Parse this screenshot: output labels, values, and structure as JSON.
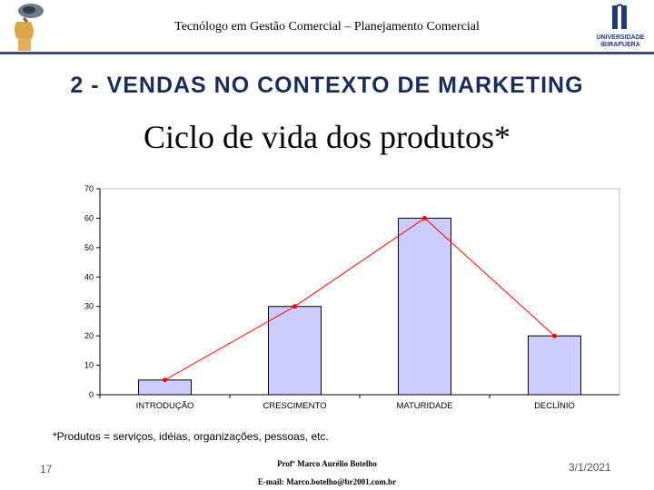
{
  "header": {
    "title": "Tecnólogo em Gestão Comercial – Planejamento Comercial",
    "right_logo_text": [
      "UNIVERSIDADE",
      "IBIRAPUERA"
    ]
  },
  "section_heading": "2 - VENDAS NO CONTEXTO DE MARKETING",
  "slide_title": "Ciclo de vida dos produtos*",
  "chart_data": {
    "type": "bar",
    "categories": [
      "INTRODUÇÃO",
      "CRESCIMENTO",
      "MATURIDADE",
      "DECLÍNIO"
    ],
    "values": [
      5,
      30,
      60,
      20
    ],
    "overlay_line": {
      "type": "line",
      "values": [
        5,
        30,
        60,
        20
      ]
    },
    "ylim": [
      0,
      70
    ],
    "yticks": [
      0,
      10,
      20,
      30,
      40,
      50,
      60,
      70
    ],
    "grid": false,
    "colors": {
      "bar_fill": "#ccccff",
      "bar_stroke": "#000000",
      "line": "#ff0000",
      "plot_bg": "#ffffff",
      "frame": "#c0c0c0"
    }
  },
  "footnote": "*Produtos = serviços, idéias, organizações, pessoas, etc.",
  "footer": {
    "page_number": "17",
    "author": "Profº Marco Aurélio Botelho",
    "email": "E-mail: Marco.botelho@br2001.com.br",
    "date": "3/1/2021"
  },
  "colors": {
    "header_rule": "#3a4a7a",
    "heading": "#1a2b5c"
  }
}
